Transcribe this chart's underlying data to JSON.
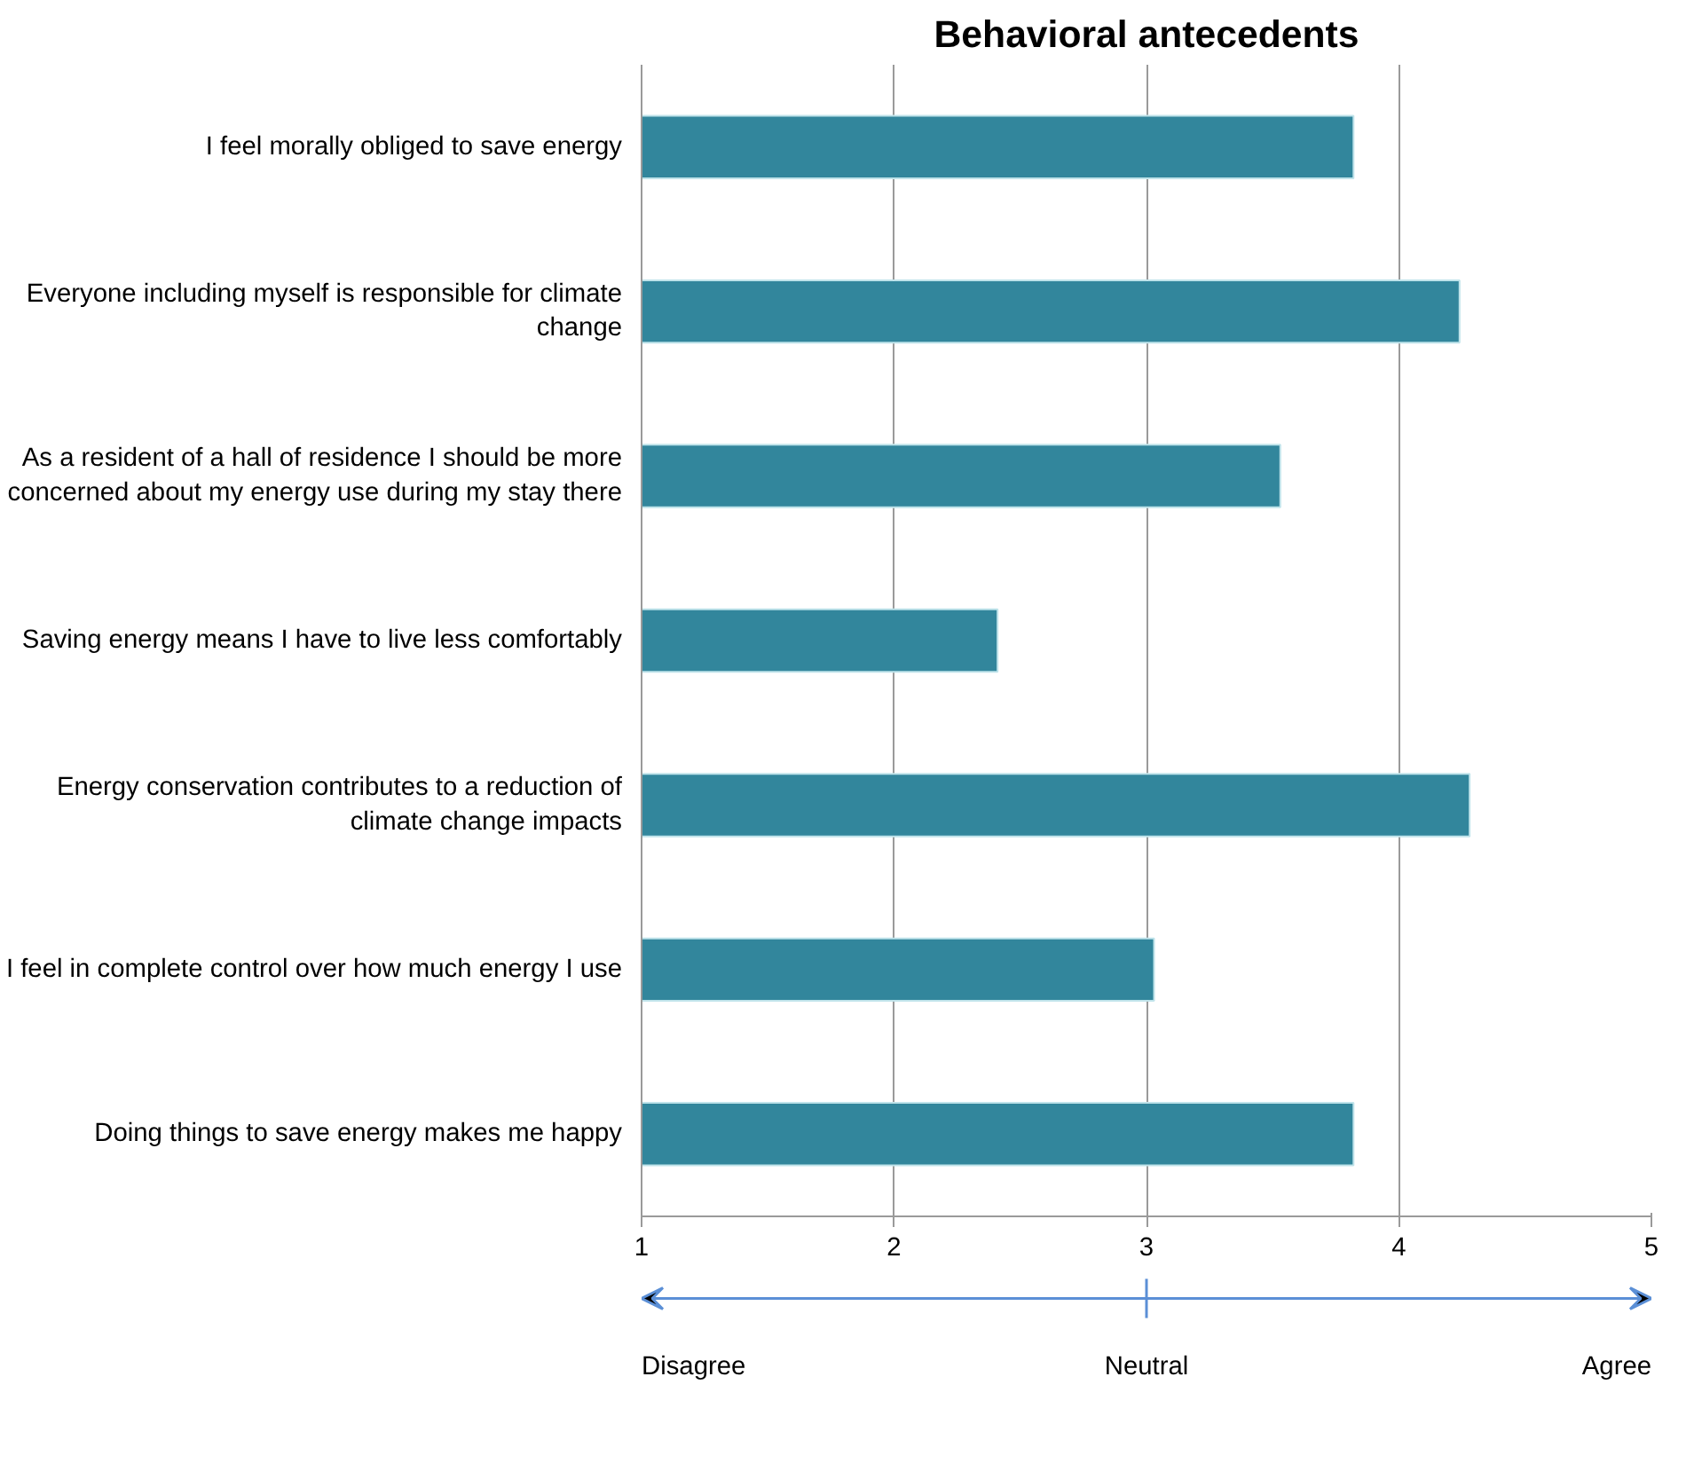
{
  "chart_data": {
    "type": "bar",
    "orientation": "horizontal",
    "title": "Behavioral antecedents",
    "categories": [
      "I feel morally obliged to save energy",
      "Everyone including myself is responsible for climate change",
      "As a resident of a hall of residence I should be more concerned about my energy use during my stay there",
      "Saving energy means I have to live less comfortably",
      "Energy conservation contributes to a reduction of climate change impacts",
      "I feel in complete control over how much energy I use",
      "Doing things to save energy makes me happy"
    ],
    "values": [
      3.82,
      4.24,
      3.53,
      2.41,
      4.28,
      3.03,
      3.82
    ],
    "color": "#32869c",
    "xlim": [
      1,
      5
    ],
    "xticks": [
      1,
      2,
      3,
      4,
      5
    ],
    "grid": "x",
    "annotations": [
      "Disagree",
      "Neutral",
      "Agree"
    ]
  }
}
